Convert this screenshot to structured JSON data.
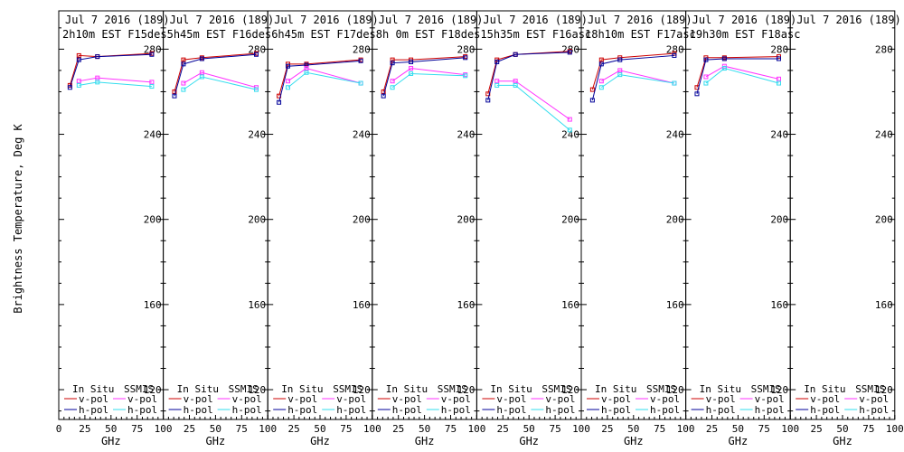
{
  "y_axis_label": "Brightness Temperature, Deg K",
  "x_axis_label": "GHz",
  "legend_headers": [
    "In Situ",
    "SSMIS"
  ],
  "legend_items": [
    "v-pol",
    "h-pol",
    "v-pol",
    "h-pol"
  ],
  "colors": {
    "insitu_v": "#cc0000",
    "insitu_h": "#000099",
    "ssmis_v": "#ff33ff",
    "ssmis_h": "#33ddee"
  },
  "chart_data": [
    {
      "type": "line",
      "title_line1": "Jul 7 2016 (189)",
      "title_line2": "2h10m EST F15des",
      "x_ticks": [
        0,
        25,
        50,
        75,
        100
      ],
      "y_ticks": [
        120,
        160,
        200,
        240,
        280
      ],
      "xlim": [
        0,
        100
      ],
      "ylim": [
        106,
        298
      ],
      "x": [
        10.7,
        19.3,
        37,
        89
      ],
      "series": [
        {
          "key": "insitu_v",
          "values": [
            263,
            277,
            276.5,
            278
          ]
        },
        {
          "key": "insitu_h",
          "values": [
            262,
            275,
            276.5,
            277.5
          ]
        },
        {
          "key": "ssmis_v",
          "values": null,
          "x_own": [
            19.3,
            37,
            89
          ],
          "values_own": [
            265,
            266.5,
            264.5
          ]
        },
        {
          "key": "ssmis_h",
          "values": null,
          "x_own": [
            19.3,
            37,
            89
          ],
          "values_own": [
            263,
            264.5,
            262.5
          ]
        }
      ]
    },
    {
      "type": "line",
      "title_line1": "Jul 7 2016 (189)",
      "title_line2": "5h45m EST F16des",
      "x_ticks": [
        0,
        25,
        50,
        75,
        100
      ],
      "y_ticks": [
        120,
        160,
        200,
        240,
        280
      ],
      "xlim": [
        0,
        100
      ],
      "ylim": [
        106,
        298
      ],
      "x": [
        10.7,
        19.3,
        37,
        89
      ],
      "series": [
        {
          "key": "insitu_v",
          "values": [
            260,
            275,
            276,
            278
          ]
        },
        {
          "key": "insitu_h",
          "values": [
            258,
            273,
            275.5,
            277.5
          ]
        },
        {
          "key": "ssmis_v",
          "values": null,
          "x_own": [
            19.3,
            37,
            89
          ],
          "values_own": [
            264,
            269,
            262
          ]
        },
        {
          "key": "ssmis_h",
          "values": null,
          "x_own": [
            19.3,
            37,
            89
          ],
          "values_own": [
            261,
            267,
            261
          ]
        }
      ]
    },
    {
      "type": "line",
      "title_line1": "Jul 7 2016 (189)",
      "title_line2": "6h45m EST F17des",
      "x_ticks": [
        0,
        25,
        50,
        75,
        100
      ],
      "y_ticks": [
        120,
        160,
        200,
        240,
        280
      ],
      "xlim": [
        0,
        100
      ],
      "ylim": [
        106,
        298
      ],
      "x": [
        10.7,
        19.3,
        37,
        89
      ],
      "series": [
        {
          "key": "insitu_v",
          "values": [
            258,
            273,
            273,
            275
          ]
        },
        {
          "key": "insitu_h",
          "values": [
            255,
            272,
            272.5,
            274.5
          ]
        },
        {
          "key": "ssmis_v",
          "values": null,
          "x_own": [
            19.3,
            37,
            89
          ],
          "values_own": [
            265,
            271,
            264
          ]
        },
        {
          "key": "ssmis_h",
          "values": null,
          "x_own": [
            19.3,
            37,
            89
          ],
          "values_own": [
            262,
            269,
            264
          ]
        }
      ]
    },
    {
      "type": "line",
      "title_line1": "Jul 7 2016 (189)",
      "title_line2": "8h 0m EST F18des",
      "x_ticks": [
        0,
        25,
        50,
        75,
        100
      ],
      "y_ticks": [
        120,
        160,
        200,
        240,
        280
      ],
      "xlim": [
        0,
        100
      ],
      "ylim": [
        106,
        298
      ],
      "x": [
        10.7,
        19.3,
        37,
        89
      ],
      "series": [
        {
          "key": "insitu_v",
          "values": [
            260,
            275,
            275,
            276.5
          ]
        },
        {
          "key": "insitu_h",
          "values": [
            258,
            273.5,
            274,
            276
          ]
        },
        {
          "key": "ssmis_v",
          "values": null,
          "x_own": [
            19.3,
            37,
            89
          ],
          "values_own": [
            265,
            271,
            268
          ]
        },
        {
          "key": "ssmis_h",
          "values": null,
          "x_own": [
            19.3,
            37,
            89
          ],
          "values_own": [
            262,
            268.5,
            267.5
          ]
        }
      ]
    },
    {
      "type": "line",
      "title_line1": "Jul 7 2016 (189)",
      "title_line2": "15h35m EST F16asc",
      "x_ticks": [
        0,
        25,
        50,
        75,
        100
      ],
      "y_ticks": [
        120,
        160,
        200,
        240,
        280
      ],
      "xlim": [
        0,
        100
      ],
      "ylim": [
        106,
        298
      ],
      "x": [
        10.7,
        19.3,
        37,
        89
      ],
      "series": [
        {
          "key": "insitu_v",
          "values": [
            259,
            275,
            277.5,
            279
          ]
        },
        {
          "key": "insitu_h",
          "values": [
            256,
            274,
            277.5,
            278.5
          ]
        },
        {
          "key": "ssmis_v",
          "values": null,
          "x_own": [
            19.3,
            37,
            89
          ],
          "values_own": [
            265,
            265,
            247
          ]
        },
        {
          "key": "ssmis_h",
          "values": null,
          "x_own": [
            19.3,
            37,
            89
          ],
          "values_own": [
            263,
            263,
            242
          ]
        }
      ]
    },
    {
      "type": "line",
      "title_line1": "Jul 7 2016 (189)",
      "title_line2": "18h10m EST F17asc",
      "x_ticks": [
        0,
        25,
        50,
        75,
        100
      ],
      "y_ticks": [
        120,
        160,
        200,
        240,
        280
      ],
      "xlim": [
        0,
        100
      ],
      "ylim": [
        106,
        298
      ],
      "x": [
        10.7,
        19.3,
        37,
        89
      ],
      "series": [
        {
          "key": "insitu_v",
          "values": [
            261,
            275,
            276,
            278
          ]
        },
        {
          "key": "insitu_h",
          "values": [
            256,
            273,
            275,
            277
          ]
        },
        {
          "key": "ssmis_v",
          "values": null,
          "x_own": [
            19.3,
            37,
            89
          ],
          "values_own": [
            265,
            270,
            264
          ]
        },
        {
          "key": "ssmis_h",
          "values": null,
          "x_own": [
            19.3,
            37,
            89
          ],
          "values_own": [
            262,
            268,
            264
          ]
        }
      ]
    },
    {
      "type": "line",
      "title_line1": "Jul 7 2016 (189)",
      "title_line2": "19h30m EST F18asc",
      "x_ticks": [
        0,
        25,
        50,
        75,
        100
      ],
      "y_ticks": [
        120,
        160,
        200,
        240,
        280
      ],
      "xlim": [
        0,
        100
      ],
      "ylim": [
        106,
        298
      ],
      "x": [
        10.7,
        19.3,
        37,
        89
      ],
      "series": [
        {
          "key": "insitu_v",
          "values": [
            262,
            276,
            276,
            276.5
          ]
        },
        {
          "key": "insitu_h",
          "values": [
            259,
            275,
            275.5,
            275.5
          ]
        },
        {
          "key": "ssmis_v",
          "values": null,
          "x_own": [
            19.3,
            37,
            89
          ],
          "values_own": [
            267,
            272,
            266
          ]
        },
        {
          "key": "ssmis_h",
          "values": null,
          "x_own": [
            19.3,
            37,
            89
          ],
          "values_own": [
            264,
            271,
            264
          ]
        }
      ]
    },
    {
      "type": "line",
      "title_line1": "Jul 7 2016 (189)",
      "title_line2": "",
      "x_ticks": [
        0,
        25,
        50,
        75,
        100
      ],
      "y_ticks": [
        120,
        160,
        200,
        240,
        280
      ],
      "xlim": [
        0,
        100
      ],
      "ylim": [
        106,
        298
      ],
      "x": [],
      "series": []
    }
  ]
}
